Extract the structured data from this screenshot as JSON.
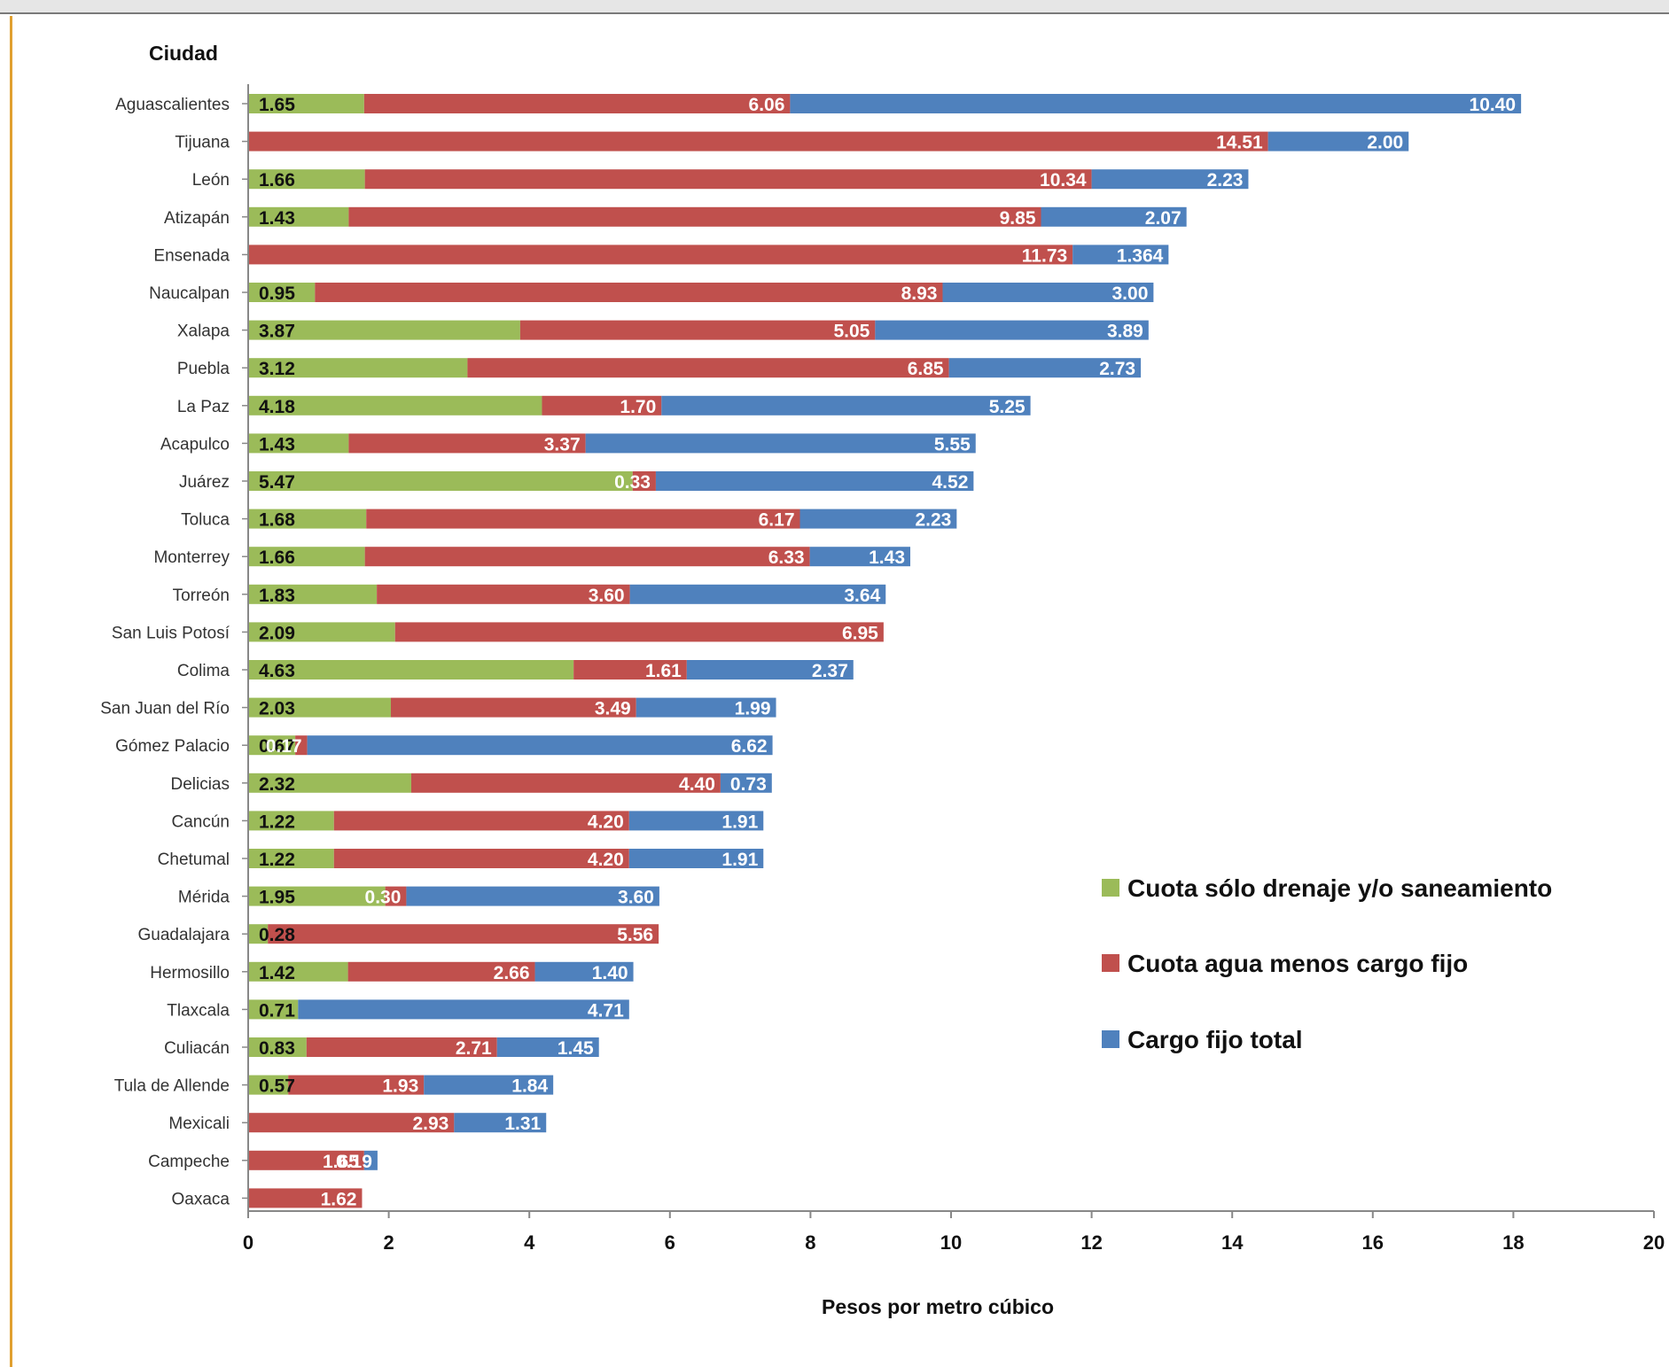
{
  "chart_data": {
    "type": "bar",
    "orientation": "horizontal",
    "stacked": true,
    "ylabel": "Ciudad",
    "xlabel": "Pesos  por metro cúbico",
    "xlim": [
      0,
      20
    ],
    "x_ticks": [
      0,
      2,
      4,
      6,
      8,
      10,
      12,
      14,
      16,
      18,
      20
    ],
    "grid": false,
    "legend_position": "right",
    "categories": [
      "Aguascalientes",
      "Tijuana",
      "León",
      "Atizapán",
      "Ensenada",
      "Naucalpan",
      "Xalapa",
      "Puebla",
      "La Paz",
      "Acapulco",
      "Juárez",
      "Toluca",
      "Monterrey",
      "Torreón",
      "San Luis Potosí",
      "Colima",
      "San Juan del Río",
      "Gómez Palacio",
      "Delicias",
      "Cancún",
      "Chetumal",
      "Mérida",
      "Guadalajara",
      "Hermosillo",
      "Tlaxcala",
      "Culiacán",
      "Tula de Allende",
      "Mexicali",
      "Campeche",
      "Oaxaca"
    ],
    "series": [
      {
        "name": "Cuota sólo drenaje y/o saneamiento",
        "color": "#9bbb59",
        "values": [
          1.65,
          null,
          1.66,
          1.43,
          null,
          0.95,
          3.87,
          3.12,
          4.18,
          1.43,
          5.47,
          1.68,
          1.66,
          1.83,
          2.09,
          4.63,
          2.03,
          0.67,
          2.32,
          1.22,
          1.22,
          1.95,
          0.28,
          1.42,
          0.71,
          0.83,
          0.57,
          null,
          null,
          null
        ],
        "labels": [
          "1.65",
          "",
          "1.66",
          "1.43",
          "",
          "0.95",
          "3.87",
          "3.12",
          "4.18",
          "1.43",
          "5.47",
          "1.68",
          "1.66",
          "1.83",
          "2.09",
          "4.63",
          "2.03",
          "0.67",
          "2.32",
          "1.22",
          "1.22",
          "1.95",
          "0.28",
          "1.42",
          "0.71",
          "0.83",
          "0.57",
          "",
          "",
          ""
        ]
      },
      {
        "name": "Cuota agua menos cargo fijo",
        "color": "#c0504d",
        "values": [
          6.06,
          14.51,
          10.34,
          9.85,
          11.73,
          8.93,
          5.05,
          6.85,
          1.7,
          3.37,
          0.33,
          6.17,
          6.33,
          3.6,
          6.95,
          1.61,
          3.49,
          0.17,
          4.4,
          4.2,
          4.2,
          0.3,
          5.56,
          2.66,
          null,
          2.71,
          1.93,
          2.93,
          1.65,
          1.62
        ],
        "labels": [
          "6.06",
          "14.51",
          "10.34",
          "9.85",
          "11.73",
          "8.93",
          "5.05",
          "6.85",
          "1.70",
          "3.37",
          "0.33",
          "6.17",
          "6.33",
          "3.60",
          "6.95",
          "1.61",
          "3.49",
          "0.17",
          "4.40",
          "4.20",
          "4.20",
          "0.30",
          "5.56",
          "2.66",
          "",
          "2.71",
          "1.93",
          "2.93",
          "1.65",
          "1.62"
        ]
      },
      {
        "name": "Cargo fijo total",
        "color": "#4f81bd",
        "values": [
          10.4,
          2.0,
          2.23,
          2.07,
          1.364,
          3.0,
          3.89,
          2.73,
          5.25,
          5.55,
          4.52,
          2.23,
          1.43,
          3.64,
          null,
          2.37,
          1.99,
          6.62,
          0.73,
          1.91,
          1.91,
          3.6,
          null,
          1.4,
          4.71,
          1.45,
          1.84,
          1.31,
          0.19,
          null
        ],
        "labels": [
          "10.40",
          "2.00",
          "2.23",
          "2.07",
          "1.364",
          "3.00",
          "3.89",
          "2.73",
          "5.25",
          "5.55",
          "4.52",
          "2.23",
          "1.43",
          "3.64",
          "",
          "2.37",
          "1.99",
          "6.62",
          "0.73",
          "1.91",
          "1.91",
          "3.60",
          "",
          "1.40",
          "4.71",
          "1.45",
          "1.84",
          "1.31",
          "0.19",
          ""
        ]
      }
    ]
  }
}
